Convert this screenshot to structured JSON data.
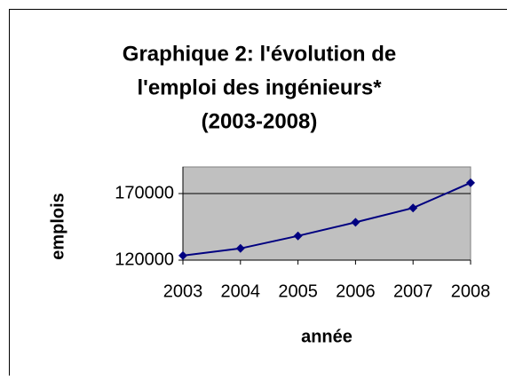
{
  "chart_data": {
    "type": "line",
    "title": [
      "Graphique 2: l'évolution de",
      "l'emploi des ingénieurs*",
      "(2003-2008)"
    ],
    "x_label": "année",
    "y_label": "emplois",
    "categories": [
      "2003",
      "2004",
      "2005",
      "2006",
      "2007",
      "2008"
    ],
    "series": [
      {
        "name": "emplois",
        "color": "#000080",
        "values": [
          123400,
          128800,
          138200,
          148400,
          159200,
          178100
        ]
      }
    ],
    "ylim": [
      120000,
      190000
    ],
    "yticks": [
      120000,
      170000
    ],
    "grid": true,
    "plot_background": "#c0c0c0"
  }
}
